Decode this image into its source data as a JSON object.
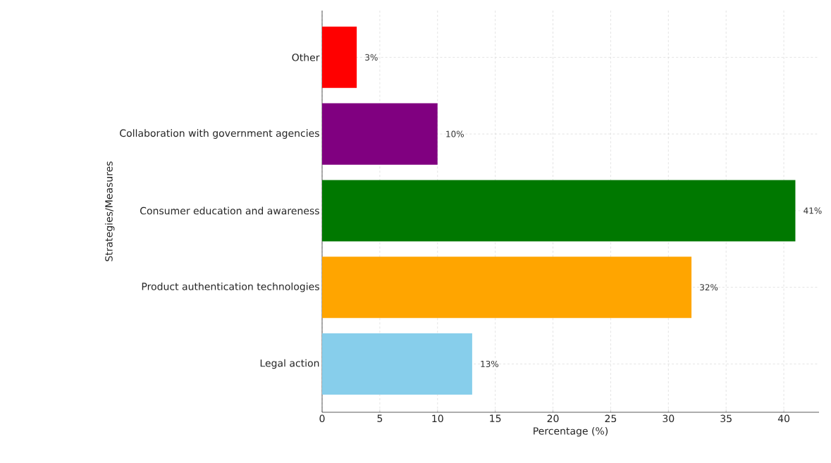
{
  "chart_data": {
    "type": "bar",
    "orientation": "horizontal",
    "categories": [
      "Other",
      "Collaboration with government agencies",
      "Consumer education and awareness",
      "Product authentication technologies",
      "Legal action"
    ],
    "values": [
      3,
      10,
      41,
      32,
      13
    ],
    "colors": [
      "#ff0000",
      "#800080",
      "#007800",
      "#ffa500",
      "#87ceeb"
    ],
    "value_labels": [
      "3%",
      "10%",
      "41%",
      "32%",
      "13%"
    ],
    "xlabel": "Percentage (%)",
    "ylabel": "Strategies/Measures",
    "xlim": [
      0,
      43.05
    ],
    "xticks": [
      0,
      5,
      10,
      15,
      20,
      25,
      30,
      35,
      40
    ],
    "grid": true
  }
}
